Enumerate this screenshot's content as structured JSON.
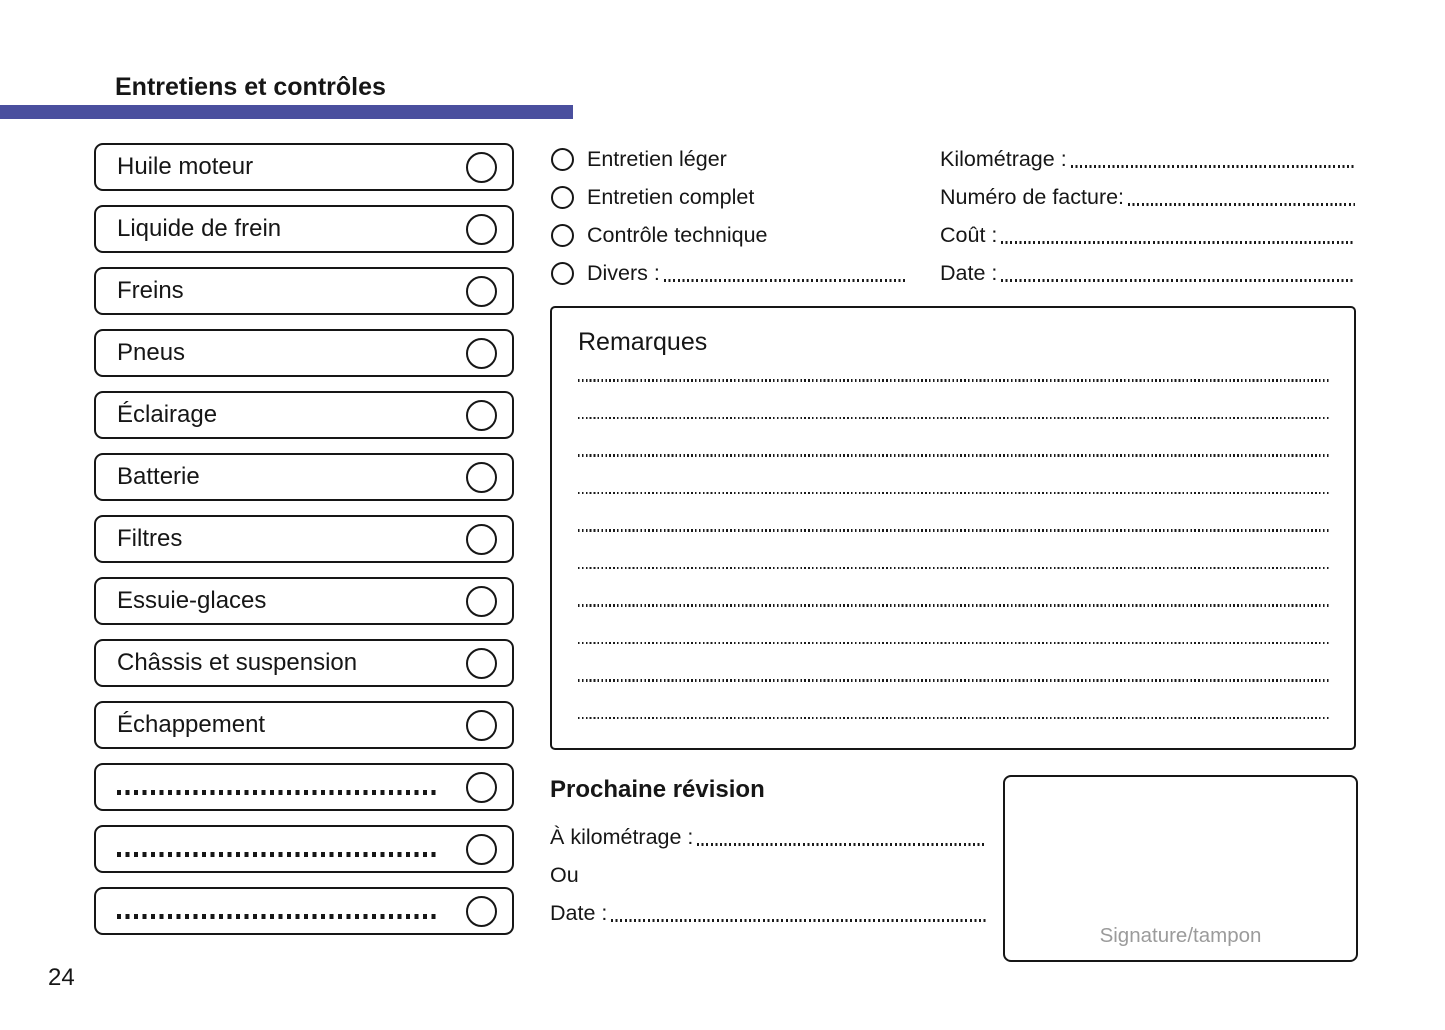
{
  "page": {
    "title": "Entretiens et contrôles",
    "page_number": "24"
  },
  "colors": {
    "accent": "#4a4f9e",
    "signature_text": "#9b9b9b",
    "ink": "#161616"
  },
  "checklist": {
    "items": [
      {
        "label": "Huile moteur",
        "blank": false
      },
      {
        "label": "Liquide de frein",
        "blank": false
      },
      {
        "label": "Freins",
        "blank": false
      },
      {
        "label": "Pneus",
        "blank": false
      },
      {
        "label": "Éclairage",
        "blank": false
      },
      {
        "label": "Batterie",
        "blank": false
      },
      {
        "label": "Filtres",
        "blank": false
      },
      {
        "label": "Essuie-glaces",
        "blank": false
      },
      {
        "label": "Châssis et suspension",
        "blank": false
      },
      {
        "label": "Échappement",
        "blank": false
      },
      {
        "label": "",
        "blank": true
      },
      {
        "label": "",
        "blank": true
      },
      {
        "label": "",
        "blank": true
      }
    ]
  },
  "service_type": {
    "options": [
      {
        "label": "Entretien léger",
        "dots": false
      },
      {
        "label": "Entretien complet",
        "dots": false
      },
      {
        "label": "Contrôle technique",
        "dots": false
      },
      {
        "label": "Divers :",
        "dots": true
      }
    ]
  },
  "invoice_fields": [
    {
      "label": "Kilométrage :",
      "dots": true
    },
    {
      "label": "Numéro de facture:",
      "dots": true
    },
    {
      "label": "Coût :",
      "dots": true
    },
    {
      "label": "Date :",
      "dots": true
    }
  ],
  "remarks": {
    "title": "Remarques",
    "line_count": 10
  },
  "next_service": {
    "title": "Prochaine révision",
    "fields": [
      {
        "label": "À kilométrage :",
        "dots": true
      },
      {
        "label": "Ou",
        "dots": false
      },
      {
        "label": "Date :",
        "dots": true
      }
    ]
  },
  "signature": {
    "label": "Signature/tampon"
  }
}
